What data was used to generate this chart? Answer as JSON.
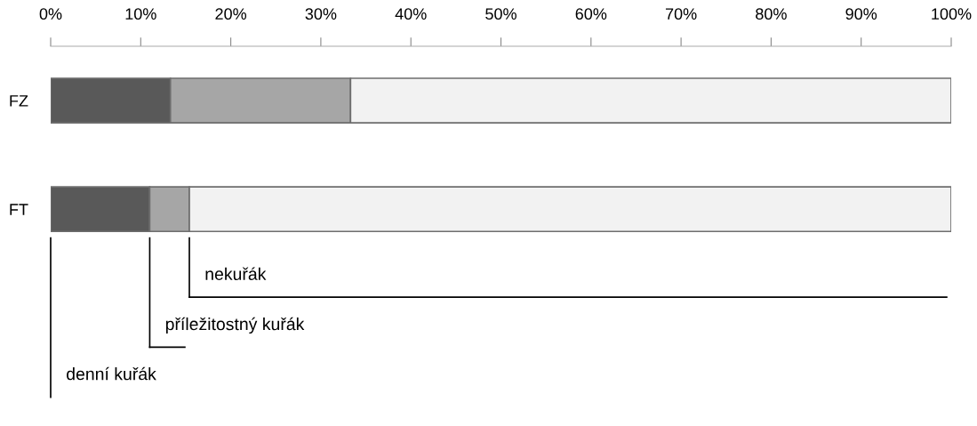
{
  "chart_data": {
    "type": "bar",
    "orientation": "horizontal",
    "stacked": true,
    "categories": [
      "FZ",
      "FT"
    ],
    "series": [
      {
        "name": "denní kuřák",
        "color": "#595959",
        "values": [
          13.3,
          11.0
        ]
      },
      {
        "name": "příležitostný kuřák",
        "color": "#a6a6a6",
        "values": [
          20.0,
          4.4
        ]
      },
      {
        "name": "nekuřák",
        "color": "#f2f2f2",
        "values": [
          66.7,
          84.6
        ]
      }
    ],
    "xlim": [
      0,
      100
    ],
    "xticks": [
      {
        "value": 0,
        "label": "0%"
      },
      {
        "value": 10,
        "label": "10%"
      },
      {
        "value": 20,
        "label": "20%"
      },
      {
        "value": 30,
        "label": "30%"
      },
      {
        "value": 40,
        "label": "40%"
      },
      {
        "value": 50,
        "label": "50%"
      },
      {
        "value": 60,
        "label": "60%"
      },
      {
        "value": 70,
        "label": "70%"
      },
      {
        "value": 80,
        "label": "80%"
      },
      {
        "value": 90,
        "label": "90%"
      },
      {
        "value": 100,
        "label": "100%"
      }
    ],
    "legend": "bottom"
  }
}
